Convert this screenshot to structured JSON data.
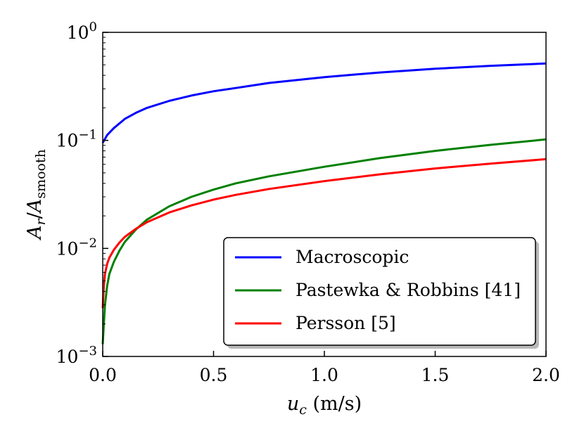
{
  "chart_data": {
    "type": "line",
    "x_scale": "linear",
    "y_scale": "log",
    "xlim": [
      0.0,
      2.0
    ],
    "ylim": [
      0.001,
      1.0
    ],
    "xlabel": {
      "main": "u",
      "sub": "c",
      "units": " (m/s)"
    },
    "ylabel": {
      "num_main": "A",
      "num_sub": "r",
      "den_main": "A",
      "den_sub": "smooth"
    },
    "x_ticks": [
      {
        "value": 0.0,
        "label": "0.0"
      },
      {
        "value": 0.5,
        "label": "0.5"
      },
      {
        "value": 1.0,
        "label": "1.0"
      },
      {
        "value": 1.5,
        "label": "1.5"
      },
      {
        "value": 2.0,
        "label": "2.0"
      }
    ],
    "y_ticks": [
      {
        "value": 0.001,
        "base": "10",
        "exp": "−3"
      },
      {
        "value": 0.01,
        "base": "10",
        "exp": "−2"
      },
      {
        "value": 0.1,
        "base": "10",
        "exp": "−1"
      },
      {
        "value": 1.0,
        "base": "10",
        "exp": "0"
      }
    ],
    "series": [
      {
        "name": "Macroscopic",
        "color": "#0000ff",
        "x": [
          0.0,
          0.02,
          0.05,
          0.1,
          0.15,
          0.2,
          0.3,
          0.4,
          0.5,
          0.6,
          0.75,
          1.0,
          1.25,
          1.5,
          1.75,
          2.0
        ],
        "y": [
          0.095,
          0.112,
          0.13,
          0.158,
          0.18,
          0.2,
          0.232,
          0.26,
          0.285,
          0.305,
          0.34,
          0.385,
          0.425,
          0.46,
          0.49,
          0.515
        ]
      },
      {
        "name": "Pastewka & Robbins [41]",
        "color": "#008000",
        "x": [
          0.0,
          0.005,
          0.01,
          0.02,
          0.03,
          0.05,
          0.075,
          0.1,
          0.15,
          0.2,
          0.3,
          0.4,
          0.5,
          0.6,
          0.75,
          1.0,
          1.25,
          1.5,
          1.75,
          2.0
        ],
        "y": [
          0.0013,
          0.002,
          0.003,
          0.0045,
          0.0058,
          0.0075,
          0.0095,
          0.0115,
          0.015,
          0.0185,
          0.0245,
          0.03,
          0.035,
          0.04,
          0.0465,
          0.057,
          0.0685,
          0.08,
          0.091,
          0.102
        ]
      },
      {
        "name": "Persson [5]",
        "color": "#ff0000",
        "x": [
          0.0,
          0.005,
          0.01,
          0.02,
          0.03,
          0.05,
          0.075,
          0.1,
          0.15,
          0.2,
          0.3,
          0.4,
          0.5,
          0.6,
          0.75,
          1.0,
          1.25,
          1.5,
          1.75,
          2.0
        ],
        "y": [
          0.0028,
          0.0045,
          0.0058,
          0.0072,
          0.0082,
          0.0097,
          0.0113,
          0.0128,
          0.0152,
          0.0175,
          0.0215,
          0.025,
          0.0283,
          0.0313,
          0.0355,
          0.042,
          0.0485,
          0.055,
          0.061,
          0.067
        ]
      }
    ],
    "legend": {
      "placement": "lower-right"
    }
  }
}
